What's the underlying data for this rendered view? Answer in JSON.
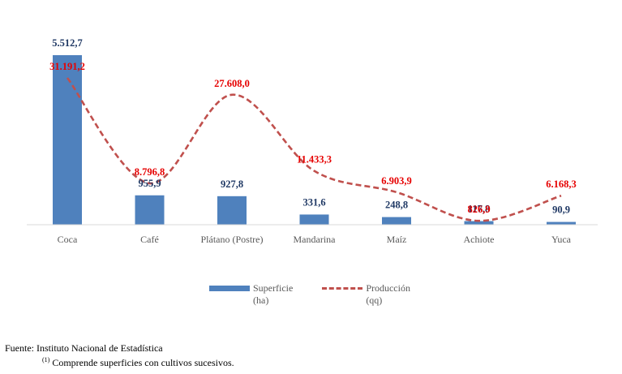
{
  "chart_data": {
    "type": "bar",
    "categories": [
      "Coca",
      "Café",
      "Plátano (Postre)",
      "Mandarina",
      "Maíz",
      "Achiote",
      "Yuca"
    ],
    "series": [
      {
        "name": "Superficie (ha)",
        "type": "bar",
        "values": [
          5512.7,
          955.9,
          927.8,
          331.6,
          248.8,
          117.8,
          90.9
        ],
        "labels": [
          "5.512,7",
          "955,9",
          "927,8",
          "331,6",
          "248,8",
          "117,8",
          "90,9"
        ],
        "color": "#4f81bd"
      },
      {
        "name": "Producción (qq)",
        "type": "line",
        "style": "dashed-smooth",
        "values": [
          31191.2,
          8796.8,
          27608.0,
          11433.3,
          6903.9,
          826.9,
          6168.3
        ],
        "labels": [
          "31.191,2",
          "8.796,8",
          "27.608,0",
          "11.433,3",
          "6.903,9",
          "826,9",
          "6.168,3"
        ],
        "color": "#c0504d"
      }
    ],
    "legend_position": "bottom",
    "grid": false
  },
  "legend": {
    "superficie_line1": "Superficie",
    "superficie_line2": "(ha)",
    "produccion_line1": "Producción",
    "produccion_line2": "(qq)"
  },
  "footer": {
    "source": "Fuente: Instituto Nacional de Estadística",
    "note_marker": "(1)",
    "note_text": " Comprende superficies con cultivos sucesivos."
  }
}
